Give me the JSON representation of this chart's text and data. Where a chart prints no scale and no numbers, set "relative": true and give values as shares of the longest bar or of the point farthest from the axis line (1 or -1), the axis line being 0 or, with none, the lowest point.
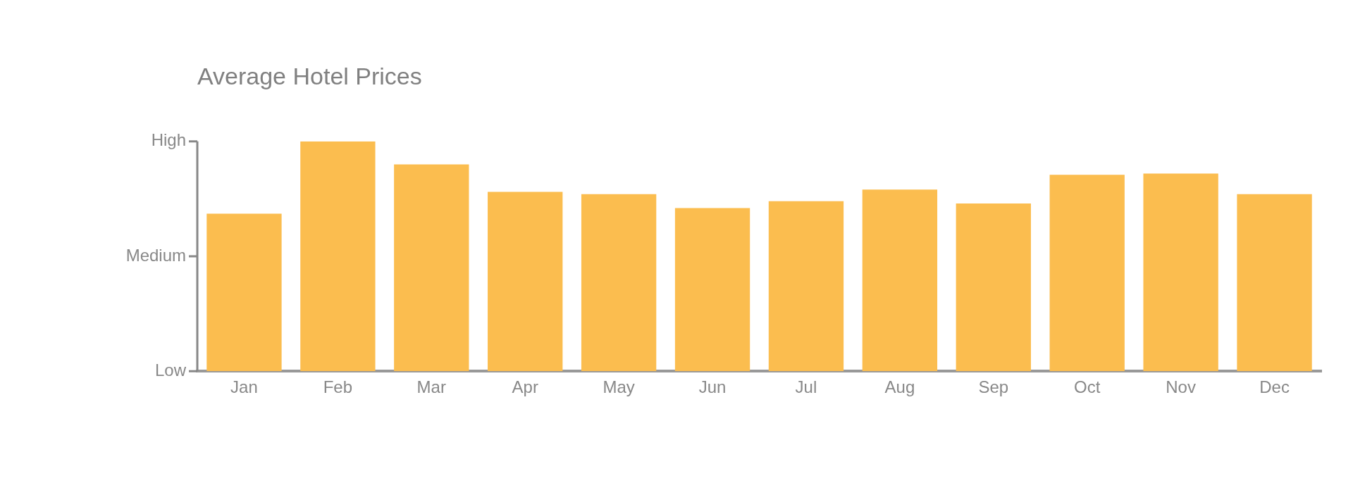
{
  "chart_data": {
    "type": "bar",
    "title": "Average Hotel Prices",
    "categories": [
      "Jan",
      "Feb",
      "Mar",
      "Apr",
      "May",
      "Jun",
      "Jul",
      "Aug",
      "Sep",
      "Oct",
      "Nov",
      "Dec"
    ],
    "values": [
      0.685,
      1.0,
      0.9,
      0.78,
      0.77,
      0.71,
      0.74,
      0.79,
      0.73,
      0.855,
      0.86,
      0.77
    ],
    "color": "#fbbd4f",
    "relative": true,
    "annotations": [
      "Low",
      "Medium",
      "High"
    ],
    "grid": false,
    "legend": false
  }
}
